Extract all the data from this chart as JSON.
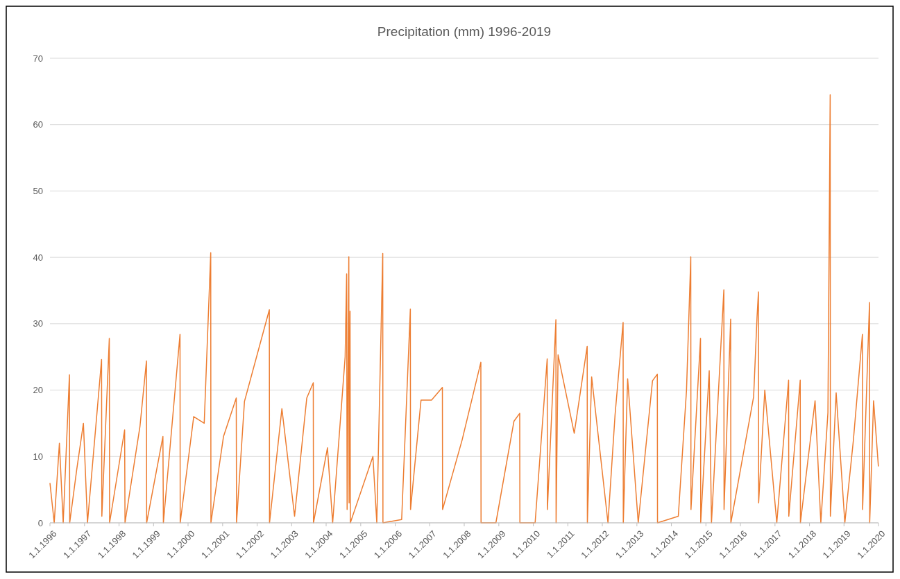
{
  "chart_data": {
    "type": "line",
    "title": "Precipitation (mm) 1996-2019",
    "x": [
      "1996-01-01",
      "1996-02-15",
      "1996-04-10",
      "1996-05-20",
      "1996-07-25",
      "1996-07-28",
      "1996-10-10",
      "1996-12-20",
      "1997-02-01",
      "1997-06-30",
      "1997-07-03",
      "1997-09-20",
      "1997-09-23",
      "1998-03-01",
      "1998-03-05",
      "1998-08-10",
      "1998-10-18",
      "1998-10-20",
      "1999-04-10",
      "1999-04-15",
      "1999-10-08",
      "1999-10-10",
      "2000-03-01",
      "2000-06-20",
      "2000-08-28",
      "2000-08-30",
      "2001-01-10",
      "2001-05-25",
      "2001-05-28",
      "2001-08-20",
      "2002-05-10",
      "2002-05-12",
      "2002-09-20",
      "2003-02-01",
      "2003-06-10",
      "2003-08-18",
      "2003-08-20",
      "2004-01-15",
      "2004-03-10",
      "2004-07-20",
      "2004-08-05",
      "2004-08-10",
      "2004-08-28",
      "2004-08-31",
      "2004-09-10",
      "2004-09-13",
      "2005-05-10",
      "2005-06-20",
      "2005-08-22",
      "2005-08-24",
      "2006-03-10",
      "2006-06-10",
      "2006-06-12",
      "2006-10-01",
      "2007-01-20",
      "2007-05-15",
      "2007-05-17",
      "2007-12-10",
      "2008-06-25",
      "2008-06-27",
      "2008-12-01",
      "2009-06-10",
      "2009-08-10",
      "2009-08-12",
      "2010-01-20",
      "2010-05-28",
      "2010-05-30",
      "2010-08-28",
      "2010-08-30",
      "2010-09-20",
      "2011-03-10",
      "2011-07-25",
      "2011-07-27",
      "2011-09-10",
      "2012-03-01",
      "2012-05-15",
      "2012-08-08",
      "2012-08-10",
      "2012-09-25",
      "2013-01-15",
      "2013-06-15",
      "2013-08-05",
      "2013-08-07",
      "2014-03-15",
      "2014-06-10",
      "2014-07-25",
      "2014-07-27",
      "2014-11-05",
      "2014-11-07",
      "2015-02-05",
      "2015-03-01",
      "2015-07-10",
      "2015-07-12",
      "2015-09-20",
      "2015-09-22",
      "2016-05-20",
      "2016-06-25",
      "2016-07-10",
      "2016-07-12",
      "2016-09-15",
      "2017-01-20",
      "2017-05-25",
      "2017-05-27",
      "2017-09-25",
      "2017-09-27",
      "2018-03-01",
      "2018-05-01",
      "2018-07-15",
      "2018-08-08",
      "2018-08-10",
      "2018-10-10",
      "2019-01-10",
      "2019-04-10",
      "2019-07-15",
      "2019-07-17",
      "2019-09-28",
      "2019-09-30",
      "2019-11-10",
      "2019-12-31"
    ],
    "series": [
      {
        "color": "#ed7d31",
        "values": [
          6,
          0,
          12,
          0,
          22.3,
          0,
          8,
          15,
          0,
          24.6,
          1,
          27.8,
          0,
          14,
          0,
          14.5,
          24.4,
          0,
          13,
          0,
          28.4,
          0,
          16,
          15,
          40.7,
          0,
          13,
          18.8,
          0,
          18.3,
          32.1,
          0,
          17.2,
          1,
          18.8,
          21.1,
          0,
          11.3,
          0,
          25,
          37.5,
          2,
          40.1,
          3,
          31.9,
          0,
          10,
          0,
          40.6,
          0,
          0.5,
          32.2,
          2,
          18.5,
          18.5,
          20.4,
          2,
          12.5,
          24.2,
          0,
          0,
          15.3,
          16.5,
          0,
          0,
          24.7,
          2,
          30.6,
          0,
          25.3,
          13.5,
          26.6,
          0,
          22,
          0,
          16.3,
          30.2,
          0,
          21.7,
          0,
          21.4,
          22.4,
          0,
          1,
          20,
          40.1,
          2,
          27.8,
          0,
          22.9,
          0,
          35.1,
          2,
          30.7,
          0,
          19,
          31,
          34.8,
          3,
          20,
          0,
          21.5,
          1,
          21.5,
          0,
          18.4,
          0,
          16.6,
          64.5,
          1,
          19.6,
          0,
          12.4,
          28.4,
          2,
          33.2,
          0,
          18.4,
          8.5
        ]
      }
    ],
    "xlim": [
      "1996-01-01",
      "2020-01-01"
    ],
    "xticks": [
      {
        "value": "1996-01-01",
        "label": "1.1.1996"
      },
      {
        "value": "1997-01-01",
        "label": "1.1.1997"
      },
      {
        "value": "1998-01-01",
        "label": "1.1.1998"
      },
      {
        "value": "1999-01-01",
        "label": "1.1.1999"
      },
      {
        "value": "2000-01-01",
        "label": "1.1.2000"
      },
      {
        "value": "2001-01-01",
        "label": "1.1.2001"
      },
      {
        "value": "2002-01-01",
        "label": "1.1.2002"
      },
      {
        "value": "2003-01-01",
        "label": "1.1.2003"
      },
      {
        "value": "2004-01-01",
        "label": "1.1.2004"
      },
      {
        "value": "2005-01-01",
        "label": "1.1.2005"
      },
      {
        "value": "2006-01-01",
        "label": "1.1.2006"
      },
      {
        "value": "2007-01-01",
        "label": "1.1.2007"
      },
      {
        "value": "2008-01-01",
        "label": "1.1.2008"
      },
      {
        "value": "2009-01-01",
        "label": "1.1.2009"
      },
      {
        "value": "2010-01-01",
        "label": "1.1.2010"
      },
      {
        "value": "2011-01-01",
        "label": "1.1.2011"
      },
      {
        "value": "2012-01-01",
        "label": "1.1.2012"
      },
      {
        "value": "2013-01-01",
        "label": "1.1.2013"
      },
      {
        "value": "2014-01-01",
        "label": "1.1.2014"
      },
      {
        "value": "2015-01-01",
        "label": "1.1.2015"
      },
      {
        "value": "2016-01-01",
        "label": "1.1.2016"
      },
      {
        "value": "2017-01-01",
        "label": "1.1.2017"
      },
      {
        "value": "2018-01-01",
        "label": "1.1.2018"
      },
      {
        "value": "2019-01-01",
        "label": "1.1.2019"
      },
      {
        "value": "2020-01-01",
        "label": "1.1.2020"
      }
    ],
    "ylim": [
      0,
      70
    ],
    "yticks": [
      0,
      10,
      20,
      30,
      40,
      50,
      60,
      70
    ],
    "grid": "y",
    "marker": "none",
    "line_style": "solid"
  }
}
